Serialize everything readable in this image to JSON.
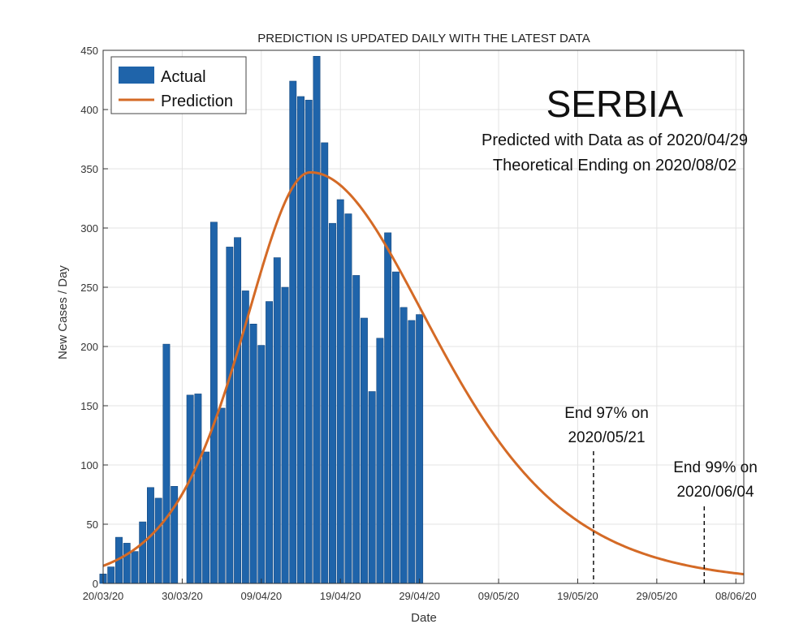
{
  "colors": {
    "bar": "#1f64aa",
    "line": "#d46a26",
    "grid": "#e3e3e3",
    "axis": "#333333"
  },
  "chart_data": {
    "type": "bar",
    "title": "PREDICTION IS UPDATED DAILY WITH THE LATEST DATA",
    "xlabel": "Date",
    "ylabel": "New Cases / Day",
    "ylim": [
      0,
      450
    ],
    "yticks": [
      0,
      50,
      100,
      150,
      200,
      250,
      300,
      350,
      400,
      450
    ],
    "x_start_label": "20/03/20",
    "x_day_range": [
      0,
      81
    ],
    "xticks": [
      {
        "day": 0,
        "label": "20/03/20"
      },
      {
        "day": 10,
        "label": "30/03/20"
      },
      {
        "day": 20,
        "label": "09/04/20"
      },
      {
        "day": 30,
        "label": "19/04/20"
      },
      {
        "day": 40,
        "label": "29/04/20"
      },
      {
        "day": 50,
        "label": "09/05/20"
      },
      {
        "day": 60,
        "label": "19/05/20"
      },
      {
        "day": 70,
        "label": "29/05/20"
      },
      {
        "day": 80,
        "label": "08/06/20"
      }
    ],
    "series": [
      {
        "name": "Actual",
        "type": "bar",
        "days": [
          0,
          1,
          2,
          3,
          4,
          5,
          6,
          7,
          8,
          9,
          10,
          11,
          12,
          13,
          14,
          15,
          16,
          17,
          18,
          19,
          20,
          21,
          22,
          23,
          24,
          25,
          26,
          27,
          28,
          29,
          30,
          31,
          32,
          33,
          34,
          35,
          36,
          37,
          38,
          39,
          40
        ],
        "values": [
          8,
          14,
          39,
          34,
          27,
          52,
          81,
          72,
          202,
          82,
          0,
          159,
          160,
          111,
          305,
          148,
          284,
          292,
          247,
          219,
          201,
          238,
          275,
          250,
          424,
          411,
          408,
          445,
          372,
          304,
          324,
          312,
          260,
          224,
          162,
          207,
          296,
          263,
          233,
          222,
          227
        ]
      },
      {
        "name": "Prediction",
        "type": "line",
        "peak_day": 26.2,
        "peak_value": 347,
        "start_value": 29,
        "end_value": 6
      }
    ],
    "legend": {
      "position": "top-left",
      "entries": [
        "Actual",
        "Prediction"
      ]
    },
    "annotations": {
      "country": "SERBIA",
      "predicted_with": "Predicted with Data as of 2020/04/29",
      "theoretical_ending": "Theoretical Ending on 2020/08/02",
      "end97_line1": "End 97% on",
      "end97_line2": "2020/05/21",
      "end97_day": 62,
      "end99_line1": "End 99% on",
      "end99_line2": "2020/06/04",
      "end99_day": 76
    }
  }
}
